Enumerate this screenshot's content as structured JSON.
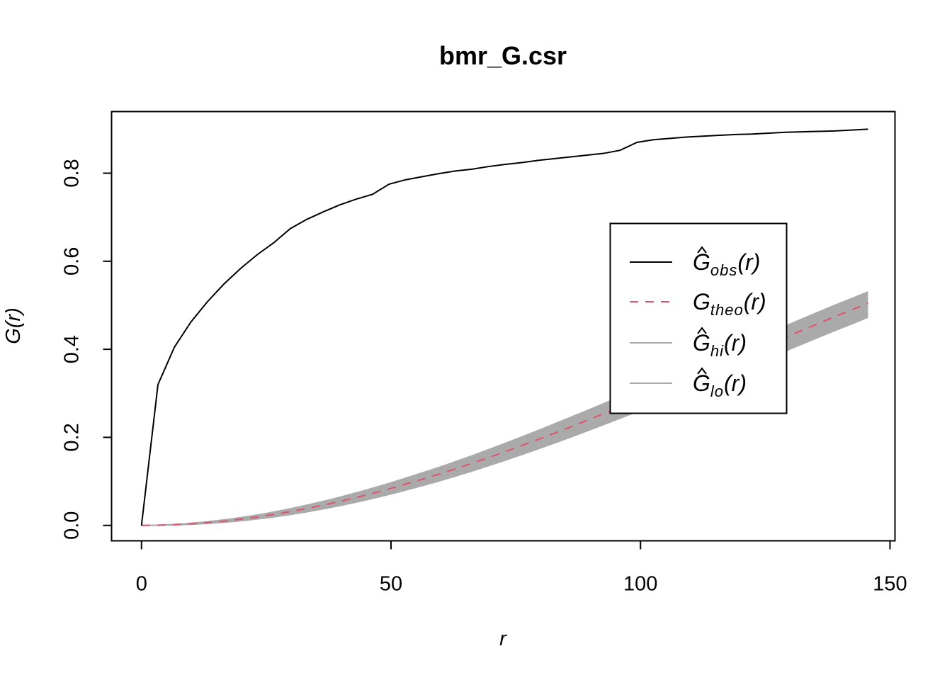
{
  "chart_data": {
    "type": "line",
    "title": "bmr_G.csr",
    "xlabel": "r",
    "ylabel": "G(r)",
    "xlim": [
      -6,
      151
    ],
    "ylim": [
      -0.035,
      0.94
    ],
    "x_ticks": [
      "0",
      "50",
      "100",
      "150"
    ],
    "y_ticks": [
      "0.0",
      "0.2",
      "0.4",
      "0.6",
      "0.8"
    ],
    "x_tick_values": [
      0,
      50,
      100,
      150
    ],
    "y_tick_values": [
      0.0,
      0.2,
      0.4,
      0.6,
      0.8
    ],
    "grid": false,
    "legend_position": "right",
    "x": [
      0,
      3.3,
      6.6,
      9.9,
      13.2,
      16.5,
      19.9,
      23.2,
      26.5,
      29.8,
      33.1,
      36.4,
      39.7,
      43.0,
      46.3,
      49.6,
      52.9,
      56.2,
      59.6,
      62.9,
      66.2,
      69.5,
      72.8,
      76.1,
      79.4,
      82.7,
      86.0,
      89.3,
      92.6,
      95.9,
      99.3,
      102.6,
      105.9,
      109.2,
      112.5,
      115.8,
      119.1,
      122.4,
      125.7,
      129.0,
      132.3,
      135.6,
      138.9,
      142.3,
      145.6
    ],
    "series": [
      {
        "name": "Ĝobs(r)",
        "legend_main": "G",
        "legend_sub": "obs",
        "hat": true,
        "color": "#000000",
        "style": "solid",
        "values": [
          0.0,
          0.32,
          0.405,
          0.462,
          0.508,
          0.548,
          0.584,
          0.615,
          0.642,
          0.674,
          0.695,
          0.712,
          0.728,
          0.741,
          0.752,
          0.775,
          0.785,
          0.792,
          0.799,
          0.805,
          0.809,
          0.815,
          0.82,
          0.824,
          0.829,
          0.833,
          0.837,
          0.841,
          0.845,
          0.852,
          0.87,
          0.876,
          0.879,
          0.882,
          0.884,
          0.886,
          0.888,
          0.889,
          0.891,
          0.893,
          0.894,
          0.895,
          0.896,
          0.898,
          0.9
        ]
      },
      {
        "name": "Gtheo(r)",
        "legend_main": "G",
        "legend_sub": "theo",
        "hat": false,
        "color": "#df536b",
        "style": "dashed",
        "values": [
          0.0,
          0.0004,
          0.0016,
          0.0036,
          0.0063,
          0.0098,
          0.0141,
          0.0191,
          0.0248,
          0.0312,
          0.0383,
          0.046,
          0.0543,
          0.0633,
          0.0728,
          0.0829,
          0.0935,
          0.1046,
          0.1163,
          0.1284,
          0.1409,
          0.1538,
          0.1671,
          0.1808,
          0.1948,
          0.2091,
          0.2237,
          0.2386,
          0.2536,
          0.2689,
          0.2843,
          0.2999,
          0.3155,
          0.3313,
          0.3472,
          0.3631,
          0.379,
          0.395,
          0.4109,
          0.4268,
          0.4426,
          0.4583,
          0.474,
          0.4895,
          0.5049
        ]
      },
      {
        "name": "Ĝhi(r)",
        "legend_main": "G",
        "legend_sub": "hi",
        "hat": true,
        "color": "#aaaaaa",
        "style": "solid",
        "values": [
          0.0,
          0.0006,
          0.0022,
          0.0048,
          0.0082,
          0.0125,
          0.0177,
          0.0236,
          0.0303,
          0.0377,
          0.0458,
          0.0545,
          0.0638,
          0.0738,
          0.0843,
          0.0954,
          0.107,
          0.1191,
          0.1316,
          0.1446,
          0.158,
          0.1718,
          0.1859,
          0.2004,
          0.2151,
          0.2301,
          0.2454,
          0.2608,
          0.2764,
          0.2922,
          0.3081,
          0.3241,
          0.3402,
          0.3563,
          0.3724,
          0.3886,
          0.4047,
          0.4208,
          0.4368,
          0.4527,
          0.4685,
          0.4842,
          0.4998,
          0.5152,
          0.5305
        ]
      },
      {
        "name": "Ĝlo(r)",
        "legend_main": "G",
        "legend_sub": "lo",
        "hat": true,
        "color": "#aaaaaa",
        "style": "solid",
        "values": [
          0.0,
          0.0002,
          0.001,
          0.0024,
          0.0044,
          0.0071,
          0.0105,
          0.0146,
          0.0193,
          0.0247,
          0.0308,
          0.0375,
          0.0448,
          0.0528,
          0.0613,
          0.0704,
          0.08,
          0.0901,
          0.1008,
          0.1119,
          0.1234,
          0.1354,
          0.1478,
          0.1605,
          0.1736,
          0.187,
          0.2007,
          0.2147,
          0.229,
          0.2435,
          0.2582,
          0.2731,
          0.2881,
          0.3033,
          0.3186,
          0.334,
          0.3494,
          0.365,
          0.3805,
          0.396,
          0.4115,
          0.427,
          0.4424,
          0.4577,
          0.4729
        ]
      }
    ]
  }
}
